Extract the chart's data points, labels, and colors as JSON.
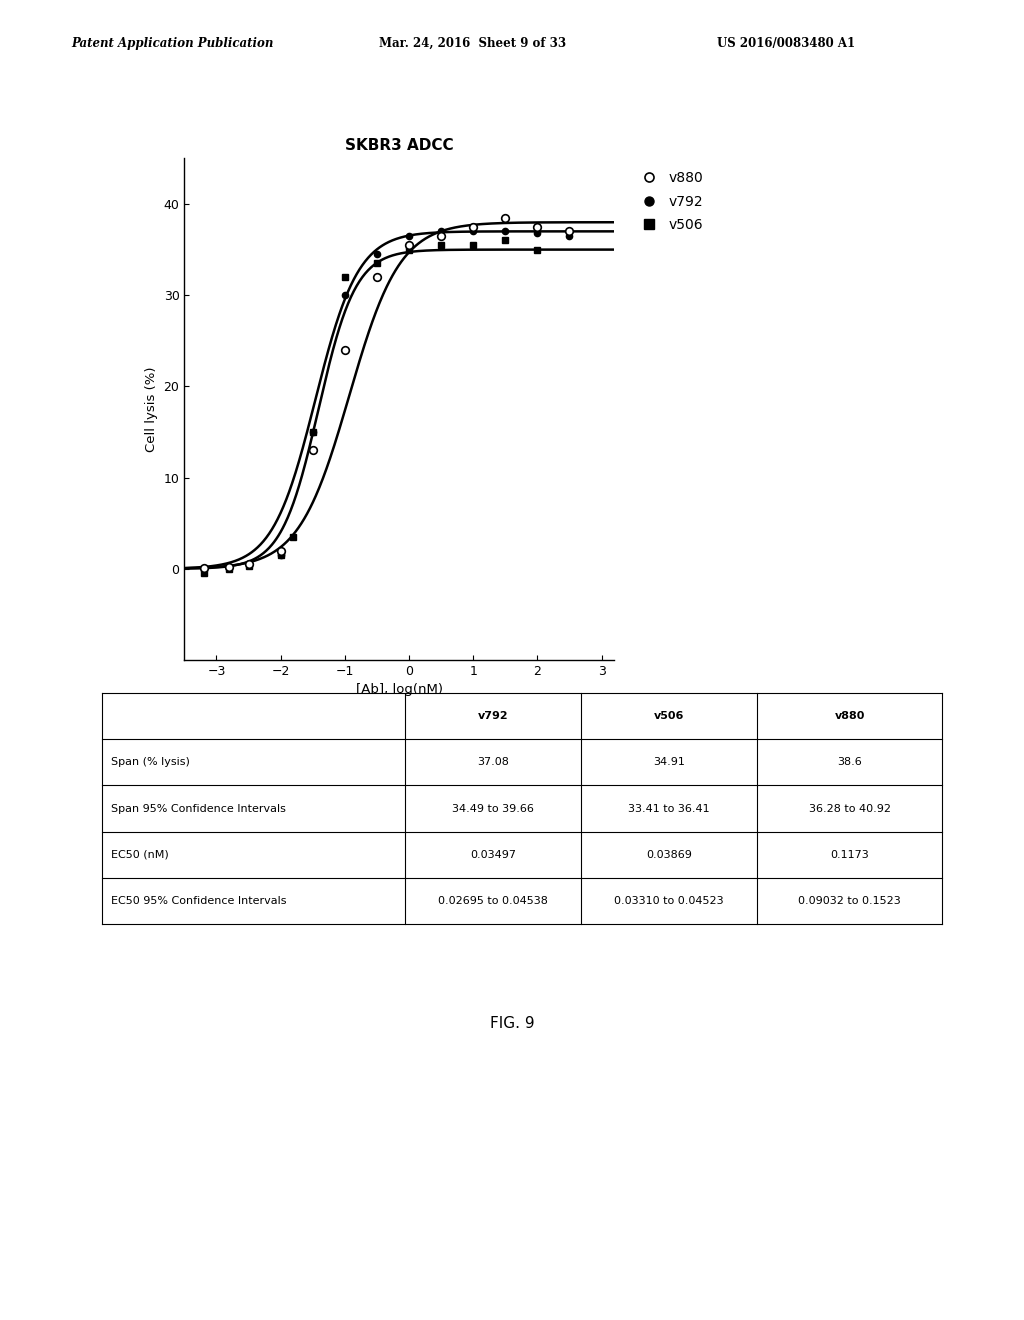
{
  "title": "SKBR3 ADCC",
  "xlabel": "[Ab], log(nM)",
  "ylabel": "Cell lysis (%)",
  "xlim": [
    -3.5,
    3.2
  ],
  "ylim": [
    -10,
    45
  ],
  "xticks": [
    -3,
    -2,
    -1,
    0,
    1,
    2,
    3
  ],
  "yticks": [
    0,
    10,
    20,
    30,
    40
  ],
  "header_text_left": "Patent Application Publication",
  "header_text_mid": "Mar. 24, 2016  Sheet 9 of 33",
  "header_text_right": "US 2016/0083480 A1",
  "fig_label": "FIG. 9",
  "table_headers": [
    "",
    "v792",
    "v506",
    "v880"
  ],
  "table_rows": [
    [
      "Span (% lysis)",
      "37.08",
      "34.91",
      "38.6"
    ],
    [
      "Span 95% Confidence Intervals",
      "34.49 to 39.66",
      "33.41 to 36.41",
      "36.28 to 40.92"
    ],
    [
      "EC50 (nM)",
      "0.03497",
      "0.03869",
      "0.1173"
    ],
    [
      "EC50 95% Confidence Intervals",
      "0.02695 to 0.04538",
      "0.03310 to 0.04523",
      "0.09032 to 0.1523"
    ]
  ],
  "curve_v880": {
    "ec50_log": -0.93,
    "span": 38.0,
    "hillslope": 1.1
  },
  "curve_v792": {
    "ec50_log": -1.46,
    "span": 37.0,
    "hillslope": 1.3
  },
  "curve_v506": {
    "ec50_log": -1.41,
    "span": 35.0,
    "hillslope": 1.5
  },
  "v880_data_x": [
    -3.2,
    -2.8,
    -2.5,
    -2.0,
    -1.5,
    -1.0,
    -0.5,
    0.0,
    0.5,
    1.0,
    1.5,
    2.0,
    2.5
  ],
  "v880_data_y": [
    0.1,
    0.2,
    0.5,
    2.0,
    13.0,
    24.0,
    32.0,
    35.5,
    36.5,
    37.5,
    38.5,
    37.5,
    37.0
  ],
  "v792_data_x": [
    -3.2,
    -2.8,
    -2.5,
    -2.0,
    -1.5,
    -1.0,
    -0.5,
    0.0,
    0.5,
    1.0,
    1.5,
    2.0,
    2.5
  ],
  "v792_data_y": [
    0.1,
    0.2,
    0.5,
    1.5,
    15.0,
    30.0,
    34.5,
    36.5,
    37.0,
    37.0,
    37.0,
    36.8,
    36.5
  ],
  "v506_data_x": [
    -3.2,
    -2.8,
    -2.5,
    -2.0,
    -1.8,
    -1.5,
    -1.0,
    -0.5,
    0.0,
    0.5,
    1.0,
    1.5,
    2.0
  ],
  "v506_data_y": [
    -0.5,
    0.0,
    0.3,
    1.5,
    3.5,
    15.0,
    32.0,
    33.5,
    35.0,
    35.5,
    35.5,
    36.0,
    35.0
  ]
}
